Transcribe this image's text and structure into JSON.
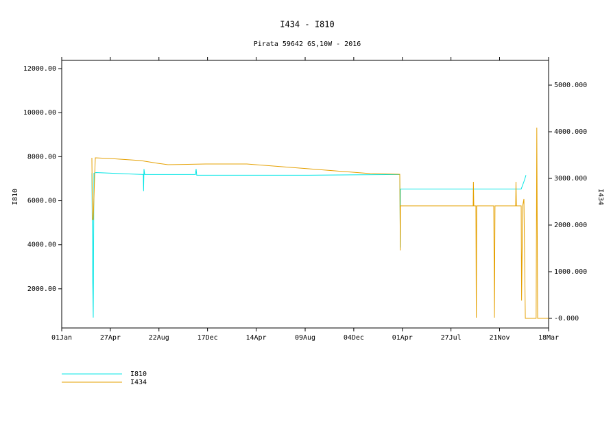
{
  "chart_data": {
    "type": "line",
    "title": "I434 - I810",
    "subtitle": "Pirata 59642 6S,10W - 2016",
    "ylabel": "I810",
    "y2label": "I434",
    "xlim": [
      0,
      1172
    ],
    "xticks": [
      {
        "value": 0,
        "label": "01Jan"
      },
      {
        "value": 117,
        "label": "27Apr"
      },
      {
        "value": 234,
        "label": "22Aug"
      },
      {
        "value": 351,
        "label": "17Dec"
      },
      {
        "value": 468,
        "label": "14Apr"
      },
      {
        "value": 586,
        "label": "09Aug"
      },
      {
        "value": 703,
        "label": "04Dec"
      },
      {
        "value": 820,
        "label": "01Apr"
      },
      {
        "value": 937,
        "label": "27Jul"
      },
      {
        "value": 1054,
        "label": "21Nov"
      },
      {
        "value": 1172,
        "label": "18Mar"
      }
    ],
    "ylim": [
      220,
      12375
    ],
    "yticks": [
      {
        "value": 2000,
        "label": "2000.00"
      },
      {
        "value": 4000,
        "label": "4000.00"
      },
      {
        "value": 6000,
        "label": "6000.00"
      },
      {
        "value": 8000,
        "label": "8000.00"
      },
      {
        "value": 10000,
        "label": "10000.00"
      },
      {
        "value": 12000,
        "label": "12000.00"
      }
    ],
    "y2lim": [
      -206,
      5530
    ],
    "y2ticks": [
      {
        "value": 0,
        "label": "-0.000"
      },
      {
        "value": 1000,
        "label": "1000.000"
      },
      {
        "value": 2000,
        "label": "2000.000"
      },
      {
        "value": 3000,
        "label": "3000.000"
      },
      {
        "value": 4000,
        "label": "4000.000"
      },
      {
        "value": 5000,
        "label": "5000.000"
      }
    ],
    "legend": "bottom-left",
    "series": [
      {
        "name": "I810",
        "color": "#00e5e5",
        "x": [
          72.6,
          74.3,
          75.9,
          77.6,
          82.5,
          196.4,
          197,
          198,
          199.7,
          321.9,
          323.5,
          325,
          594,
          813.8,
          815,
          815.5,
          1106,
          1114,
          1117.5
        ],
        "values": [
          7250,
          2800,
          690,
          7250,
          7280,
          7190,
          6440,
          7440,
          7190,
          7190,
          7440,
          7160,
          7160,
          7190,
          3880,
          6530,
          6530,
          6940,
          7160
        ]
      },
      {
        "name": "I434",
        "color": "#e5a000",
        "axis": "y2",
        "x": [
          72.6,
          74,
          75.9,
          79.2,
          80.9,
          115.6,
          189.8,
          231,
          255.9,
          346.7,
          445.7,
          594.3,
          742.8,
          813.8,
          815,
          815.5,
          990.4,
          991,
          992,
          997,
          998,
          999,
          1040,
          1041.6,
          1043,
          1092.8,
          1093.5,
          1094.5,
          1106,
          1107,
          1109.6,
          1112.6,
          1116,
          1142,
          1143.6,
          1145.6,
          1172
        ],
        "values": [
          3441,
          2118,
          2118,
          3029,
          3441,
          3426,
          3382,
          3324,
          3294,
          3309,
          3309,
          3206,
          3103,
          3088,
          1456,
          2412,
          2412,
          2926,
          2412,
          2412,
          15,
          2412,
          2412,
          15,
          2412,
          2412,
          2926,
          2412,
          2412,
          382,
          2412,
          2559,
          0,
          0,
          4088,
          0,
          0
        ]
      }
    ]
  }
}
